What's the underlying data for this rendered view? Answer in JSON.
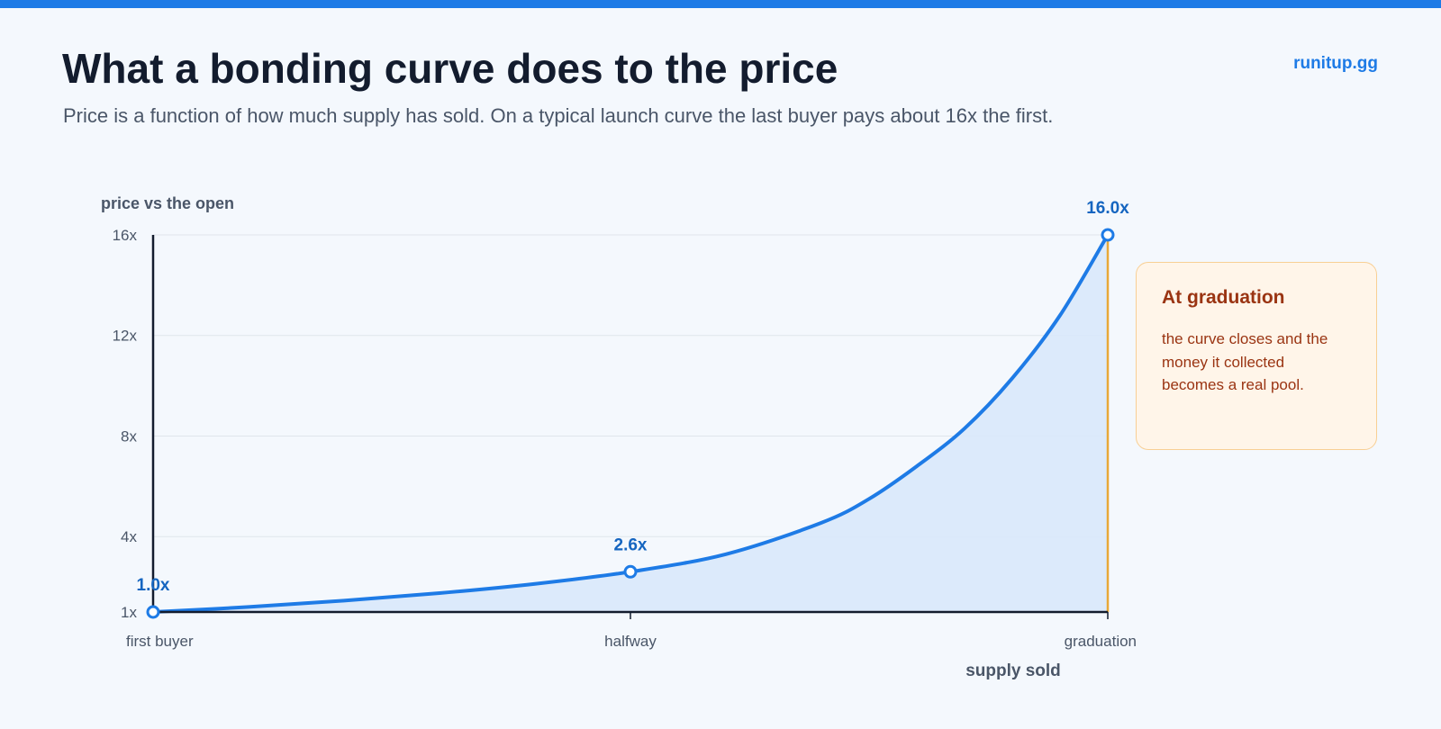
{
  "header": {
    "title": "What a bonding curve does to the price",
    "subtitle": "Price is a function of how much supply has sold. On a typical launch curve the last buyer pays about 16x the first.",
    "brand": "runitup.gg"
  },
  "callout": {
    "title": "At graduation",
    "body": "the curve closes and the money it collected becomes a real pool."
  },
  "colors": {
    "accent": "#1e7be6",
    "area_fill": "#d9e8fb",
    "graduation_line": "#e8a838",
    "callout_text": "#9a3412",
    "callout_bg": "#fff5e9"
  },
  "chart_data": {
    "type": "area",
    "ylabel": "price vs the open",
    "xlabel": "supply sold",
    "ylim": [
      1,
      16
    ],
    "yticks": [
      {
        "value": 1,
        "label": "1x"
      },
      {
        "value": 4,
        "label": "4x"
      },
      {
        "value": 8,
        "label": "8x"
      },
      {
        "value": 12,
        "label": "12x"
      },
      {
        "value": 16,
        "label": "16x"
      }
    ],
    "xlim": [
      0,
      1
    ],
    "xticks": [
      {
        "value": 0,
        "label": "first buyer"
      },
      {
        "value": 0.5,
        "label": "halfway"
      },
      {
        "value": 1,
        "label": "graduation"
      }
    ],
    "grid": true,
    "series": [
      {
        "x": [
          0,
          0.1,
          0.2,
          0.3,
          0.4,
          0.5,
          0.6,
          0.7,
          0.75,
          0.8,
          0.85,
          0.9,
          0.95,
          1
        ],
        "y": [
          1.0,
          1.2,
          1.45,
          1.75,
          2.12,
          2.6,
          3.3,
          4.55,
          5.5,
          6.8,
          8.3,
          10.3,
          12.8,
          16.0
        ]
      }
    ],
    "highlights": [
      {
        "x": 0,
        "y": 1.0,
        "label": "1.0x"
      },
      {
        "x": 0.5,
        "y": 2.6,
        "label": "2.6x"
      },
      {
        "x": 1,
        "y": 16.0,
        "label": "16.0x"
      }
    ]
  }
}
